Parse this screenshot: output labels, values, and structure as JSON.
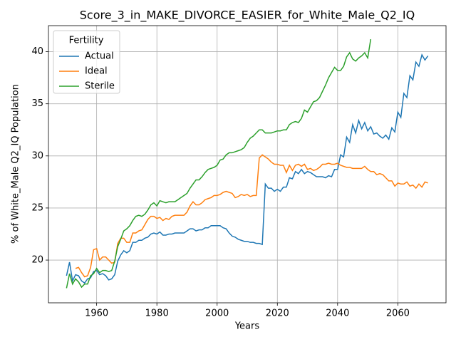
{
  "chart_data": {
    "type": "line",
    "title": "Score_3_in_MAKE_DIVORCE_EASIER_for_White_Male_Q2_IQ",
    "x_label": "Years",
    "y_label": "% of White_Male Q2_IQ Population",
    "legend_title": "Fertility",
    "legend_position": "upper left",
    "grid": true,
    "xlim": [
      1944,
      2076
    ],
    "ylim": [
      15.9,
      42.5
    ],
    "xticks": [
      1960,
      1980,
      2000,
      2020,
      2040,
      2060
    ],
    "yticks": [
      20,
      25,
      30,
      35,
      40
    ],
    "x": [
      1950,
      1951,
      1952,
      1953,
      1954,
      1955,
      1956,
      1957,
      1958,
      1959,
      1960,
      1961,
      1962,
      1963,
      1964,
      1965,
      1966,
      1967,
      1968,
      1969,
      1970,
      1971,
      1972,
      1973,
      1974,
      1975,
      1976,
      1977,
      1978,
      1979,
      1980,
      1981,
      1982,
      1983,
      1984,
      1985,
      1986,
      1987,
      1988,
      1989,
      1990,
      1991,
      1992,
      1993,
      1994,
      1995,
      1996,
      1997,
      1998,
      1999,
      2000,
      2001,
      2002,
      2003,
      2004,
      2005,
      2006,
      2007,
      2008,
      2009,
      2010,
      2011,
      2012,
      2013,
      2014,
      2015,
      2016,
      2017,
      2018,
      2019,
      2020,
      2021,
      2022,
      2023,
      2024,
      2025,
      2026,
      2027,
      2028,
      2029,
      2030,
      2031,
      2032,
      2033,
      2034,
      2035,
      2036,
      2037,
      2038,
      2039,
      2040,
      2041,
      2042,
      2043,
      2044,
      2045,
      2046,
      2047,
      2048,
      2049,
      2050,
      2051,
      2052,
      2053,
      2054,
      2055,
      2056,
      2057,
      2058,
      2059,
      2060,
      2061,
      2062,
      2063,
      2064,
      2065,
      2066,
      2067,
      2068,
      2069,
      2070
    ],
    "series": [
      {
        "name": "Actual",
        "color": "#1f77b4",
        "values": [
          18.5,
          19.8,
          18.0,
          18.6,
          18.5,
          18.0,
          17.8,
          18.2,
          18.3,
          18.9,
          19.0,
          18.6,
          18.7,
          18.5,
          18.1,
          18.2,
          18.6,
          19.9,
          20.5,
          20.9,
          20.7,
          20.9,
          21.7,
          21.7,
          21.9,
          21.9,
          22.1,
          22.2,
          22.5,
          22.6,
          22.5,
          22.7,
          22.4,
          22.4,
          22.5,
          22.5,
          22.6,
          22.6,
          22.6,
          22.6,
          22.8,
          23.0,
          23.0,
          22.8,
          22.9,
          22.9,
          23.1,
          23.1,
          23.3,
          23.3,
          23.3,
          23.3,
          23.1,
          23.0,
          22.6,
          22.3,
          22.2,
          22.0,
          21.9,
          21.8,
          21.8,
          21.7,
          21.7,
          21.6,
          21.6,
          21.5,
          27.3,
          26.9,
          26.9,
          26.6,
          26.8,
          26.6,
          27.0,
          27.0,
          27.9,
          27.8,
          28.5,
          28.3,
          28.7,
          28.3,
          28.5,
          28.4,
          28.2,
          28.0,
          28.0,
          28.0,
          27.9,
          28.1,
          28.0,
          28.7,
          28.7,
          30.1,
          29.9,
          31.8,
          31.3,
          33.0,
          32.2,
          33.4,
          32.6,
          33.2,
          32.4,
          32.8,
          32.1,
          32.2,
          31.9,
          31.7,
          32.0,
          31.6,
          32.7,
          32.3,
          34.2,
          33.7,
          36.0,
          35.6,
          37.7,
          37.3,
          39.0,
          38.6,
          39.7,
          39.2,
          39.6
        ]
      },
      {
        "name": "Ideal",
        "color": "#ff7f0e",
        "values": [
          null,
          null,
          null,
          19.2,
          19.3,
          18.8,
          18.4,
          18.5,
          19.3,
          21.0,
          21.1,
          20.0,
          20.3,
          20.3,
          20.0,
          19.7,
          19.8,
          21.6,
          22.1,
          22.1,
          21.7,
          21.7,
          22.6,
          22.6,
          22.8,
          22.9,
          23.4,
          23.9,
          24.2,
          24.2,
          24.0,
          24.1,
          23.8,
          24.0,
          23.9,
          24.2,
          24.3,
          24.3,
          24.3,
          24.3,
          24.6,
          25.2,
          25.6,
          25.3,
          25.3,
          25.5,
          25.8,
          25.9,
          26.0,
          26.2,
          26.2,
          26.3,
          26.5,
          26.6,
          26.5,
          26.4,
          26.0,
          26.1,
          26.3,
          26.2,
          26.3,
          26.1,
          26.2,
          26.2,
          29.8,
          30.1,
          29.9,
          29.7,
          29.4,
          29.2,
          29.2,
          29.1,
          29.1,
          28.4,
          29.1,
          28.6,
          29.1,
          29.2,
          29.0,
          29.2,
          28.7,
          28.8,
          28.6,
          28.7,
          28.9,
          29.2,
          29.2,
          29.3,
          29.2,
          29.2,
          29.3,
          29.1,
          29.0,
          28.9,
          28.9,
          28.8,
          28.8,
          28.8,
          28.8,
          29.0,
          28.7,
          28.5,
          28.5,
          28.2,
          28.3,
          28.2,
          27.9,
          27.6,
          27.6,
          27.1,
          27.4,
          27.3,
          27.3,
          27.5,
          27.1,
          27.2,
          26.9,
          27.3,
          27.0,
          27.5,
          27.4
        ]
      },
      {
        "name": "Sterile",
        "color": "#2ca02c",
        "values": [
          17.3,
          18.7,
          17.7,
          18.2,
          17.9,
          17.4,
          17.7,
          17.7,
          18.5,
          18.7,
          19.2,
          18.8,
          19.0,
          19.0,
          18.9,
          19.0,
          19.9,
          21.3,
          22.0,
          22.8,
          23.0,
          23.3,
          23.8,
          24.2,
          24.3,
          24.2,
          24.4,
          24.8,
          25.3,
          25.5,
          25.2,
          25.7,
          25.6,
          25.5,
          25.6,
          25.6,
          25.6,
          25.8,
          26.0,
          26.2,
          26.4,
          26.9,
          27.3,
          27.7,
          27.7,
          28.0,
          28.4,
          28.7,
          28.8,
          28.9,
          29.1,
          29.6,
          29.7,
          30.1,
          30.3,
          30.3,
          30.4,
          30.5,
          30.6,
          30.8,
          31.3,
          31.7,
          31.9,
          32.2,
          32.5,
          32.5,
          32.2,
          32.2,
          32.2,
          32.3,
          32.4,
          32.4,
          32.5,
          32.5,
          33.0,
          33.2,
          33.3,
          33.2,
          33.6,
          34.4,
          34.2,
          34.7,
          35.2,
          35.3,
          35.6,
          36.2,
          36.8,
          37.5,
          38.0,
          38.5,
          38.2,
          38.2,
          38.6,
          39.5,
          39.9,
          39.3,
          39.1,
          39.4,
          39.6,
          39.9,
          39.4,
          41.2,
          null,
          null,
          null,
          null,
          null,
          null,
          null,
          null,
          null,
          null,
          null,
          null,
          null,
          null,
          null,
          null,
          null,
          null,
          null
        ]
      }
    ]
  }
}
